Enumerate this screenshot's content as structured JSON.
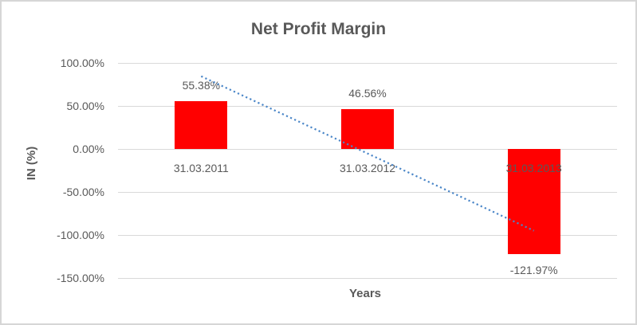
{
  "window": {
    "background": "#ffffff",
    "border_color": "#d6d6d6"
  },
  "chart_data": {
    "type": "bar",
    "title": "Net Profit Margin",
    "xlabel": "Years",
    "ylabel": "IN (%)",
    "categories": [
      "31.03.2011",
      "31.03.2012",
      "31.03.2013"
    ],
    "values": [
      55.38,
      46.56,
      -121.97
    ],
    "data_labels": [
      "55.38%",
      "46.56%",
      "-121.97%"
    ],
    "ytick_labels": [
      "100.00%",
      "50.00%",
      "0.00%",
      "-50.00%",
      "-100.00%",
      "-150.00%"
    ],
    "ytick_values": [
      100,
      50,
      0,
      -50,
      -100,
      -150
    ],
    "ylim": [
      -150,
      100
    ],
    "grid": true,
    "legend": false,
    "bar_color": "#ff0000",
    "text_color": "#595959",
    "gridline_color": "#d9d9d9",
    "trendline": {
      "type": "linear",
      "style": "dotted",
      "color": "#4a86c8",
      "start_value": 84.5,
      "end_value": -95.0
    }
  }
}
